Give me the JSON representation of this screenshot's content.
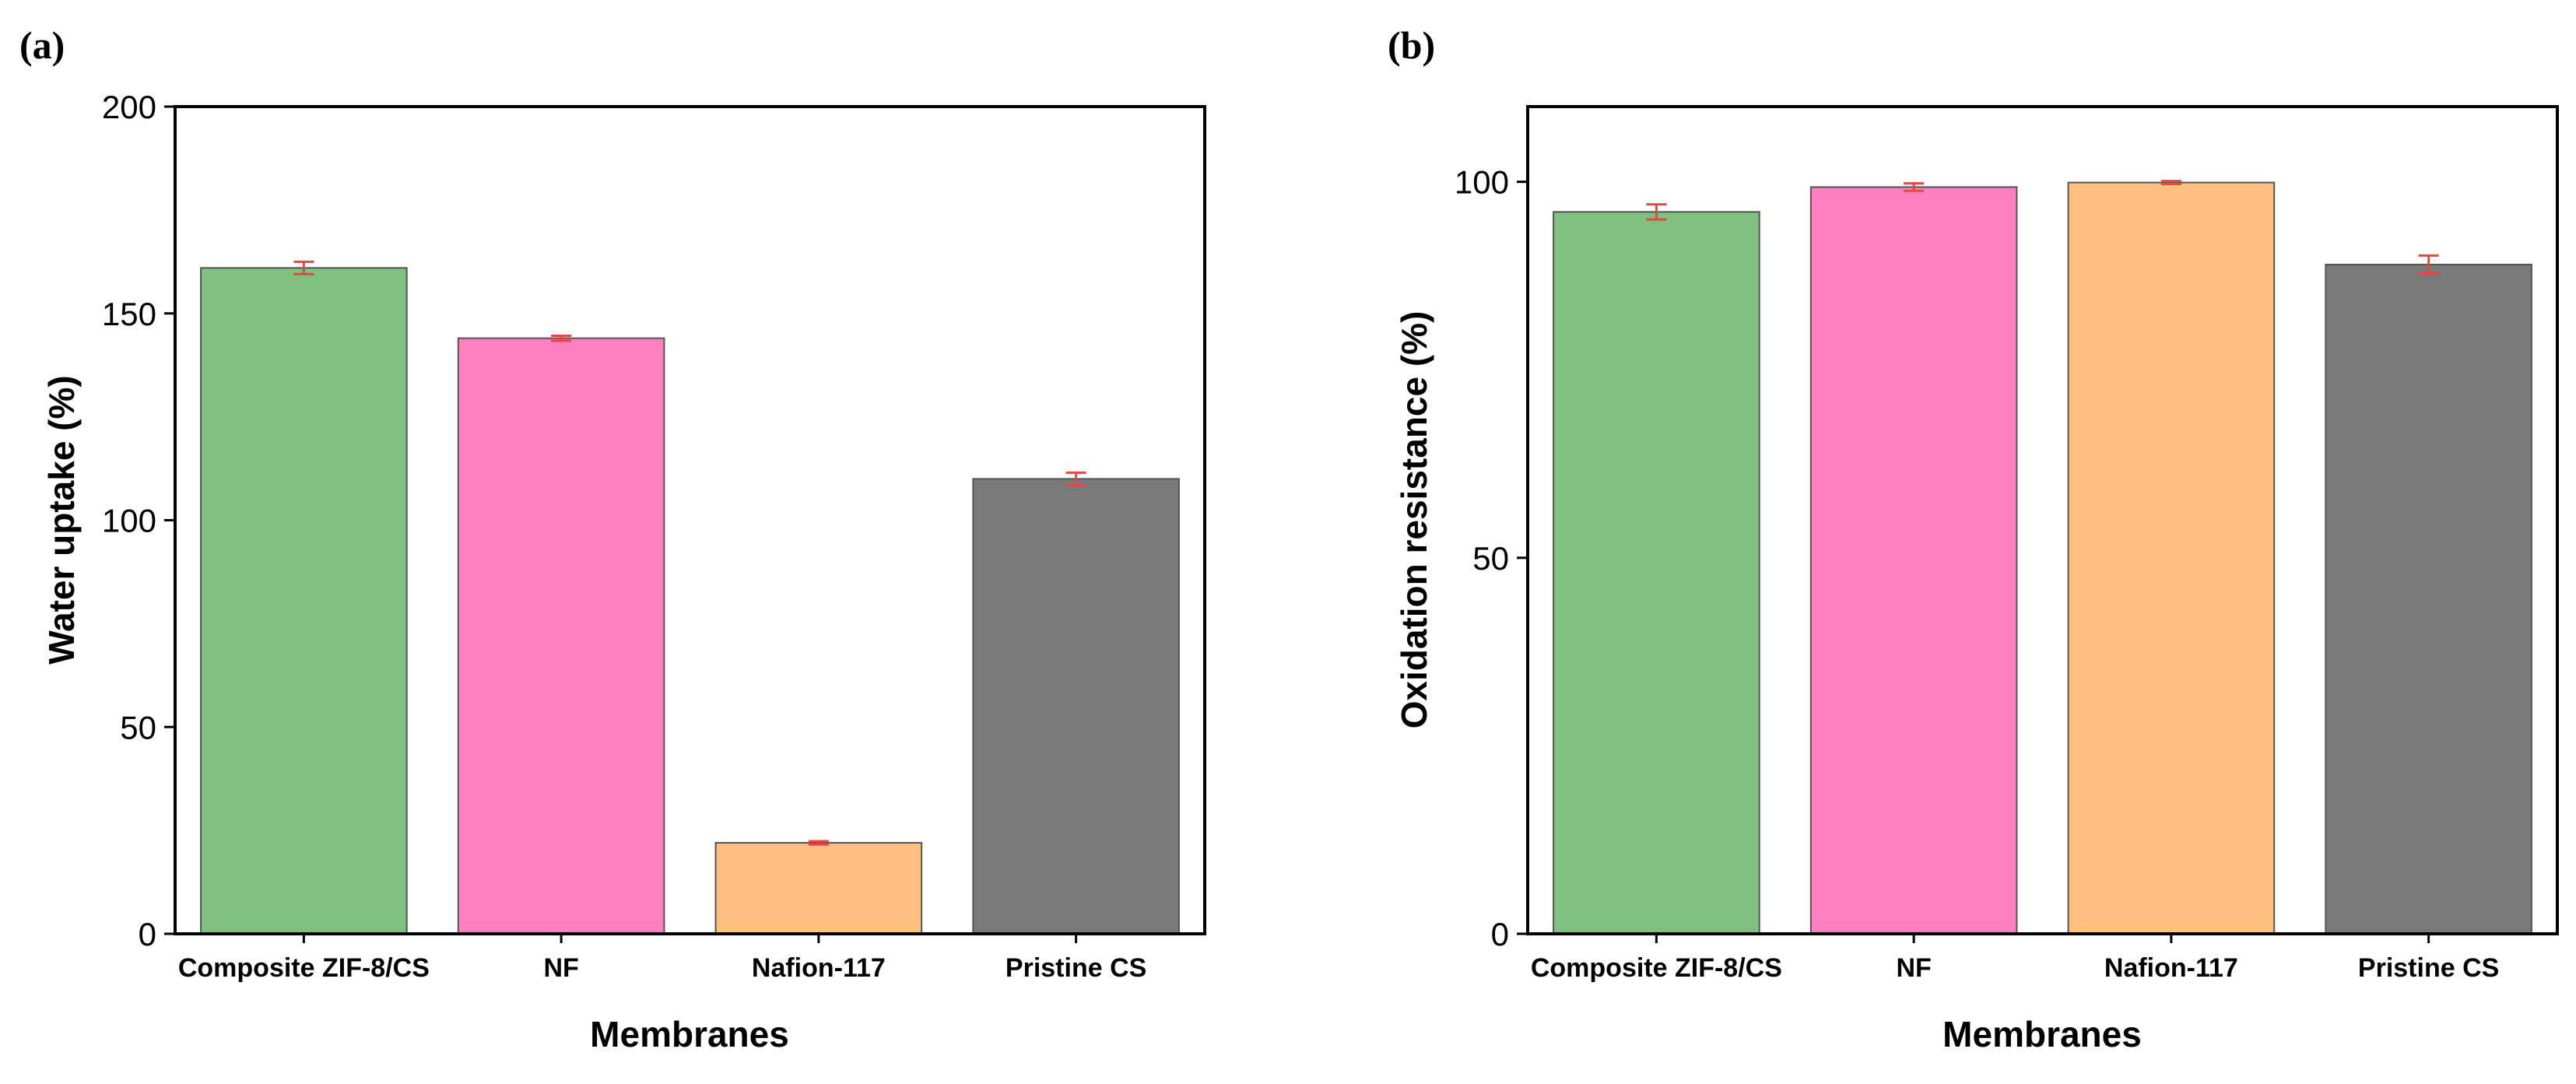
{
  "chart_data": [
    {
      "panel_label": "(a)",
      "type": "bar",
      "categories": [
        "Composite ZIF-8/CS",
        "NF",
        "Nafion-117",
        "Pristine CS"
      ],
      "values": [
        161,
        144,
        22,
        110
      ],
      "errors": [
        1.5,
        0.6,
        0.4,
        1.5
      ],
      "colors": [
        "#80c080",
        "#ff80c0",
        "#ffc080",
        "#7a7a7a"
      ],
      "error_color": "#e8473f",
      "xlabel": "Membranes",
      "ylabel": "Water uptake (%)",
      "ylim": [
        0,
        200
      ],
      "yticks": [
        0,
        50,
        100,
        150,
        200
      ]
    },
    {
      "panel_label": "(b)",
      "type": "bar",
      "categories": [
        "Composite ZIF-8/CS",
        "NF",
        "Nafion-117",
        "Pristine CS"
      ],
      "values": [
        96,
        99.3,
        99.9,
        89
      ],
      "errors": [
        1.0,
        0.5,
        0.2,
        1.2
      ],
      "colors": [
        "#80c080",
        "#ff80c0",
        "#ffc080",
        "#7a7a7a"
      ],
      "error_color": "#e8473f",
      "xlabel": "Membranes",
      "ylabel": "Oxidation resistance (%)",
      "ylim": [
        0,
        110
      ],
      "yticks": [
        0,
        50,
        100
      ]
    }
  ]
}
